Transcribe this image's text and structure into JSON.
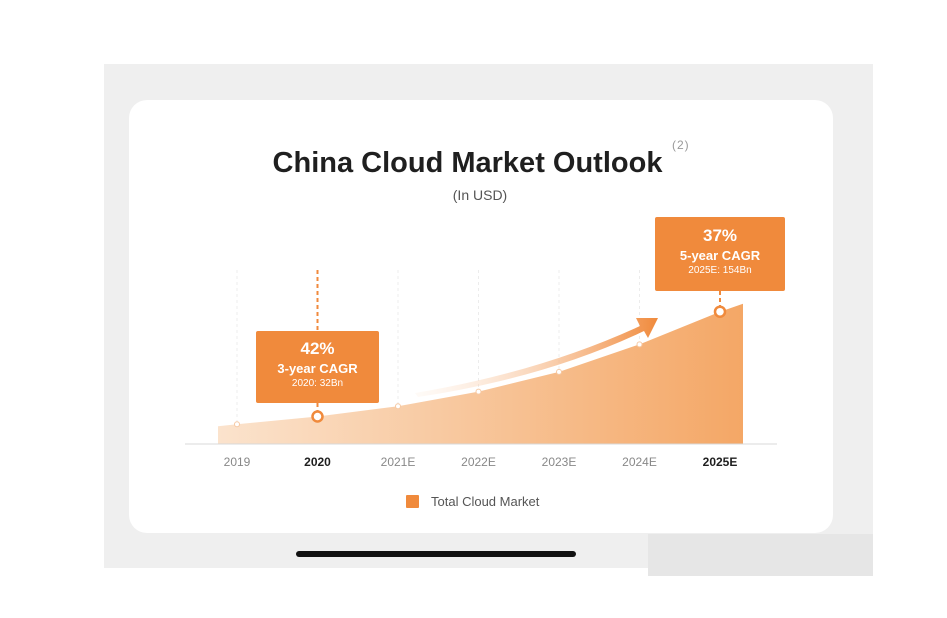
{
  "slide": {
    "title": "China Cloud Market Outlook",
    "footnote": "(2)",
    "subtitle": "(In USD)"
  },
  "callouts": [
    {
      "pct": "42%",
      "cagr": "3-year CAGR",
      "value": "2020: 32Bn",
      "category": "2020"
    },
    {
      "pct": "37%",
      "cagr": "5-year CAGR",
      "value": "2025E: 154Bn",
      "category": "2025E"
    }
  ],
  "colors": {
    "accent": "#f08a3c",
    "area_light": "#fbe3cd",
    "area_dark": "#f4a766"
  },
  "chart_data": {
    "type": "area",
    "title": "China Cloud Market Outlook",
    "subtitle": "(In USD)",
    "categories": [
      "2019",
      "2020",
      "2021E",
      "2022E",
      "2023E",
      "2024E",
      "2025E"
    ],
    "highlighted_categories": [
      "2020",
      "2025E"
    ],
    "series": [
      {
        "name": "Total Cloud Market",
        "values": [
          23,
          32,
          44,
          61,
          84,
          116,
          154
        ]
      }
    ],
    "ylim": [
      0,
      220
    ],
    "legend": "bottom-center",
    "grid": "vertical-dashed",
    "icons": [
      "growth-arrow-icon"
    ]
  }
}
